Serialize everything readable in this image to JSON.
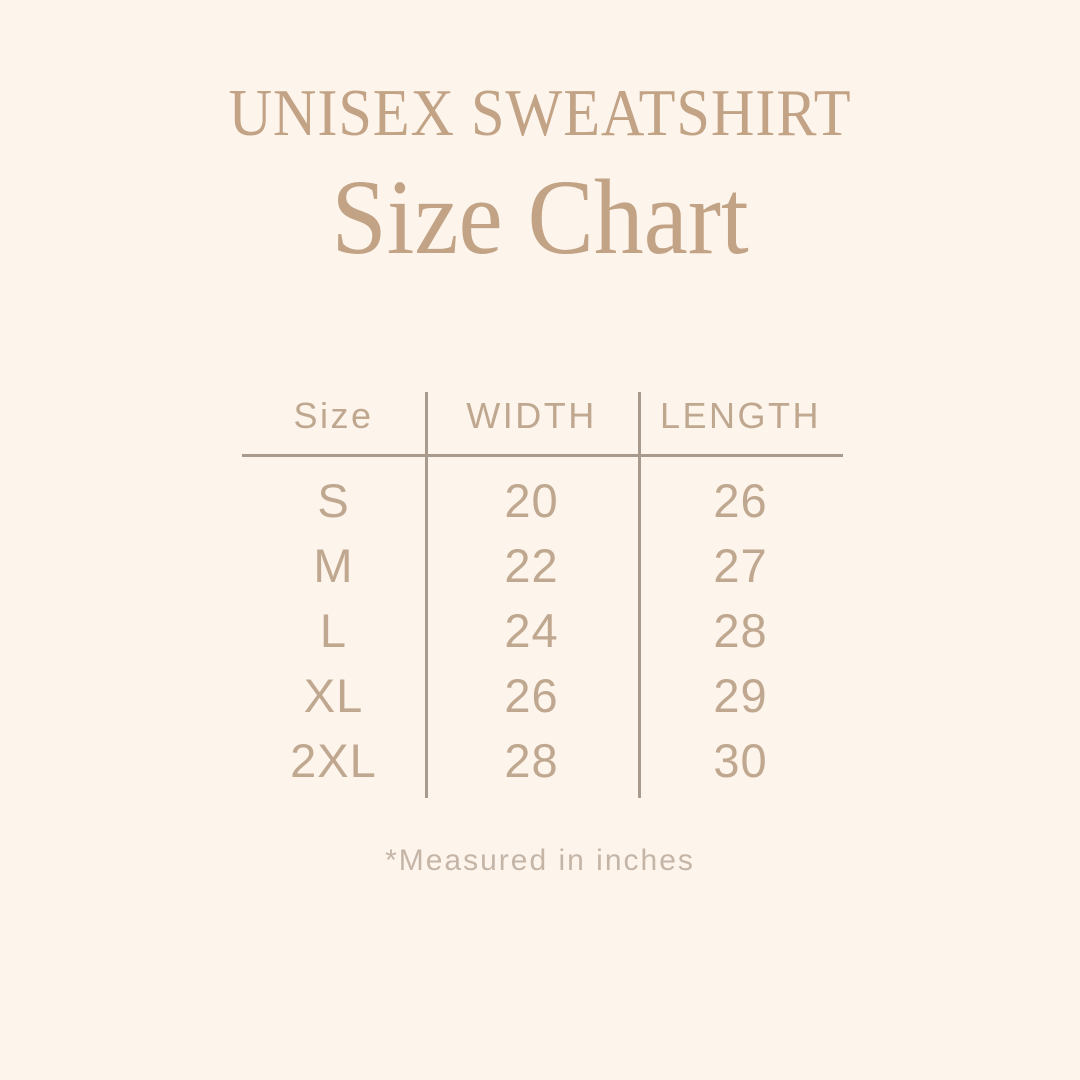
{
  "page": {
    "background_color": "#fdf4ec",
    "heading_color": "#c2a385",
    "table_text_color": "#bfa88f",
    "divider_line_color": "#a89a8c",
    "footnote_color": "#c5b5a6"
  },
  "header": {
    "title": "UNISEX SWEATSHIRT",
    "subtitle": "Size Chart"
  },
  "chart_data": {
    "type": "table",
    "title": "UNISEX SWEATSHIRT Size Chart",
    "columns": [
      "Size",
      "WIDTH",
      "LENGTH"
    ],
    "rows": [
      [
        "S",
        "20",
        "26"
      ],
      [
        "M",
        "22",
        "27"
      ],
      [
        "L",
        "24",
        "28"
      ],
      [
        "XL",
        "26",
        "29"
      ],
      [
        "2XL",
        "28",
        "30"
      ]
    ],
    "units": "inches",
    "footnote": "*Measured in inches"
  }
}
